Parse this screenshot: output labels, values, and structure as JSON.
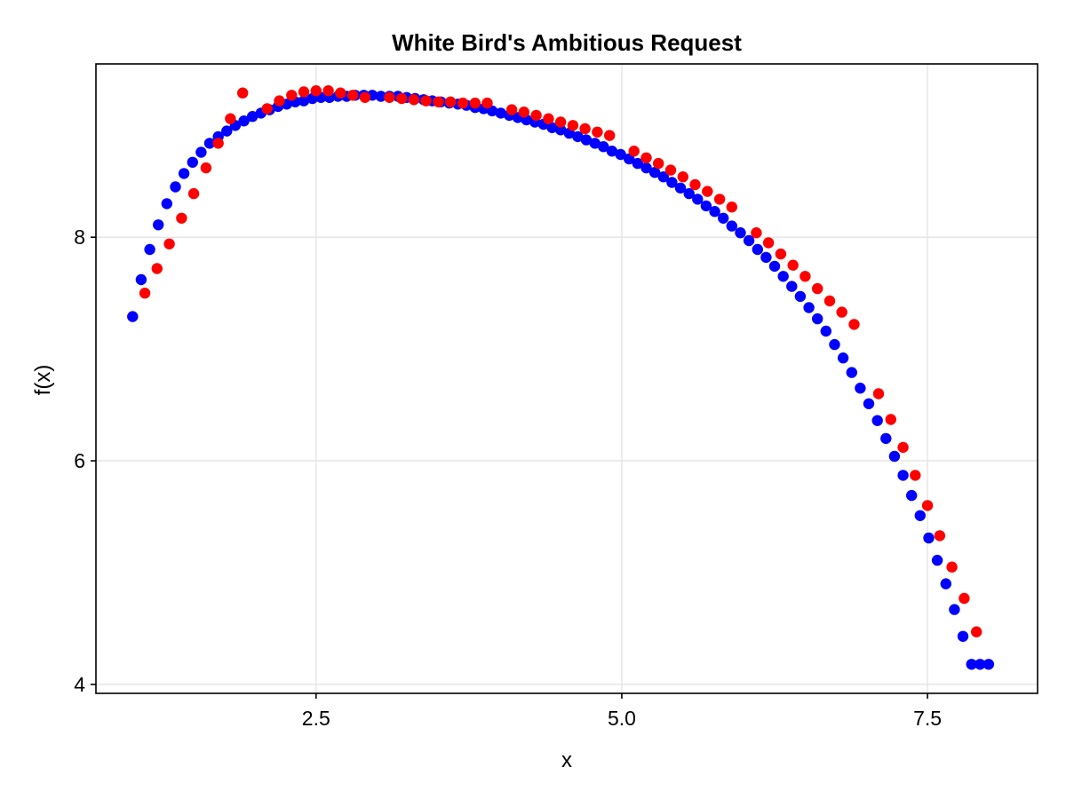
{
  "chart_data": {
    "type": "scatter",
    "title": "White Bird's Ambitious Request",
    "xlabel": "x",
    "ylabel": "f(x)",
    "xlim": [
      0.7,
      8.4
    ],
    "ylim": [
      3.92,
      9.55
    ],
    "xticks": [
      2.5,
      5.0,
      7.5
    ],
    "xtick_labels": [
      "2.5",
      "5.0",
      "7.5"
    ],
    "yticks": [
      4,
      6,
      8
    ],
    "ytick_labels": [
      "4",
      "6",
      "8"
    ],
    "grid": true,
    "legend": "none",
    "series": [
      {
        "color": "#0000ff",
        "x": [
          1.0,
          1.07,
          1.14,
          1.21,
          1.28,
          1.35,
          1.42,
          1.49,
          1.56,
          1.63,
          1.7,
          1.77,
          1.84,
          1.91,
          1.98,
          2.05,
          2.12,
          2.19,
          2.26,
          2.33,
          2.4,
          2.47,
          2.54,
          2.61,
          2.68,
          2.75,
          2.82,
          2.89,
          2.96,
          3.03,
          3.1,
          3.17,
          3.24,
          3.31,
          3.38,
          3.45,
          3.52,
          3.59,
          3.66,
          3.73,
          3.8,
          3.87,
          3.94,
          4.01,
          4.08,
          4.15,
          4.22,
          4.29,
          4.36,
          4.43,
          4.5,
          4.57,
          4.64,
          4.71,
          4.78,
          4.85,
          4.92,
          4.99,
          5.06,
          5.13,
          5.2,
          5.27,
          5.34,
          5.41,
          5.48,
          5.55,
          5.62,
          5.69,
          5.76,
          5.83,
          5.9,
          5.97,
          6.04,
          6.11,
          6.18,
          6.25,
          6.32,
          6.39,
          6.46,
          6.53,
          6.6,
          6.67,
          6.74,
          6.81,
          6.88,
          6.95,
          7.02,
          7.09,
          7.16,
          7.23,
          7.3,
          7.37,
          7.44,
          7.51,
          7.58,
          7.65,
          7.72,
          7.79,
          7.86,
          7.93,
          8.0
        ],
        "y": [
          7.29,
          7.62,
          7.89,
          8.11,
          8.3,
          8.45,
          8.57,
          8.67,
          8.76,
          8.84,
          8.9,
          8.95,
          9.0,
          9.04,
          9.08,
          9.11,
          9.14,
          9.17,
          9.19,
          9.21,
          9.22,
          9.24,
          9.25,
          9.25,
          9.26,
          9.26,
          9.27,
          9.27,
          9.27,
          9.26,
          9.26,
          9.26,
          9.25,
          9.24,
          9.23,
          9.22,
          9.21,
          9.2,
          9.19,
          9.18,
          9.16,
          9.15,
          9.13,
          9.11,
          9.09,
          9.07,
          9.05,
          9.03,
          9.01,
          8.98,
          8.96,
          8.93,
          8.9,
          8.87,
          8.84,
          8.81,
          8.77,
          8.74,
          8.7,
          8.66,
          8.62,
          8.58,
          8.54,
          8.49,
          8.44,
          8.39,
          8.34,
          8.28,
          8.23,
          8.17,
          8.1,
          8.04,
          7.97,
          7.89,
          7.82,
          7.74,
          7.65,
          7.56,
          7.47,
          7.37,
          7.27,
          7.16,
          7.04,
          6.92,
          6.79,
          6.65,
          6.51,
          6.36,
          6.2,
          6.04,
          5.87,
          5.69,
          5.51,
          5.31,
          5.11,
          4.9,
          4.67,
          4.43,
          4.18,
          4.18,
          4.18
        ]
      },
      {
        "color": "#ff0000",
        "x": [
          1.1,
          1.2,
          1.3,
          1.4,
          1.5,
          1.6,
          1.7,
          1.8,
          1.9,
          2.1,
          2.2,
          2.3,
          2.4,
          2.5,
          2.6,
          2.7,
          2.8,
          2.9,
          3.1,
          3.2,
          3.3,
          3.4,
          3.5,
          3.6,
          3.7,
          3.8,
          3.9,
          4.1,
          4.2,
          4.3,
          4.4,
          4.5,
          4.6,
          4.7,
          4.8,
          4.9,
          5.1,
          5.2,
          5.3,
          5.4,
          5.5,
          5.6,
          5.7,
          5.8,
          5.9,
          6.1,
          6.2,
          6.3,
          6.4,
          6.5,
          6.6,
          6.7,
          6.8,
          6.9,
          7.1,
          7.2,
          7.3,
          7.4,
          7.5,
          7.6,
          7.7,
          7.8,
          7.9
        ],
        "y": [
          7.5,
          7.72,
          7.94,
          8.17,
          8.39,
          8.62,
          8.84,
          9.06,
          9.29,
          9.15,
          9.22,
          9.27,
          9.3,
          9.31,
          9.31,
          9.29,
          9.27,
          9.25,
          9.25,
          9.24,
          9.23,
          9.22,
          9.21,
          9.21,
          9.2,
          9.2,
          9.2,
          9.14,
          9.12,
          9.09,
          9.06,
          9.03,
          9.0,
          8.97,
          8.94,
          8.91,
          8.77,
          8.71,
          8.66,
          8.6,
          8.54,
          8.47,
          8.41,
          8.34,
          8.27,
          8.04,
          7.95,
          7.85,
          7.75,
          7.65,
          7.54,
          7.43,
          7.33,
          7.22,
          6.6,
          6.37,
          6.12,
          5.87,
          5.6,
          5.33,
          5.05,
          4.77,
          4.47
        ]
      }
    ]
  }
}
